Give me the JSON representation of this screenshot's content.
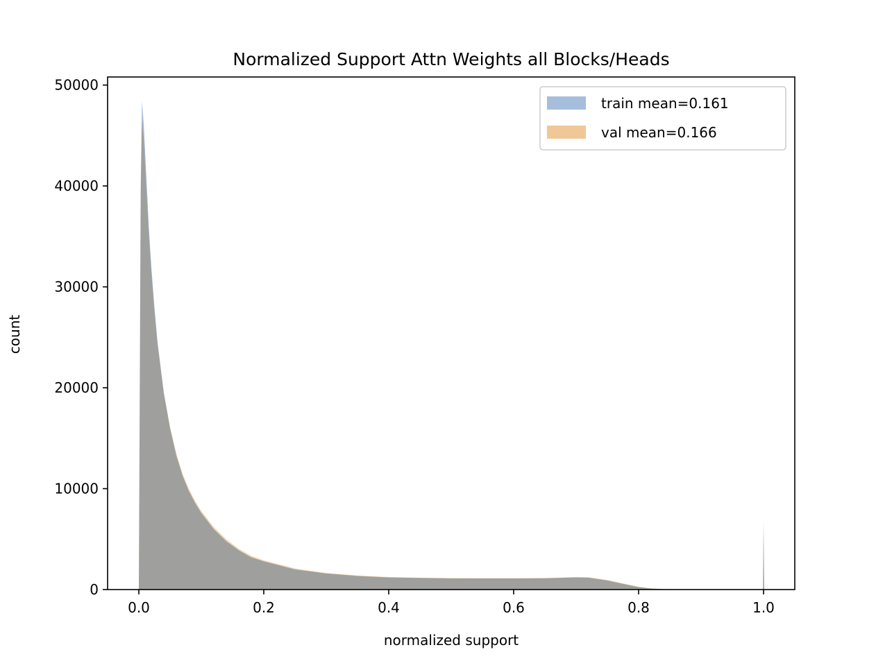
{
  "chart_data": {
    "type": "histogram",
    "title": "Normalized Support Attn Weights all Blocks/Heads",
    "xlabel": "normalized support",
    "ylabel": "count",
    "xlim": [
      -0.05,
      1.05
    ],
    "ylim": [
      0,
      50800
    ],
    "x_ticks": [
      0.0,
      0.2,
      0.4,
      0.6,
      0.8,
      1.0
    ],
    "x_tick_labels": [
      "0.0",
      "0.2",
      "0.4",
      "0.6",
      "0.8",
      "1.0"
    ],
    "y_ticks": [
      0,
      10000,
      20000,
      30000,
      40000,
      50000
    ],
    "y_tick_labels": [
      "0",
      "10000",
      "20000",
      "30000",
      "40000",
      "50000"
    ],
    "grid": false,
    "legend_position": "top-right",
    "series": [
      {
        "name": "train mean=0.161",
        "color": "#a6bddb",
        "points": [
          [
            0.0,
            0
          ],
          [
            0.0015,
            20000
          ],
          [
            0.003,
            40000
          ],
          [
            0.005,
            48400
          ],
          [
            0.008,
            46000
          ],
          [
            0.012,
            41000
          ],
          [
            0.016,
            36000
          ],
          [
            0.02,
            32000
          ],
          [
            0.025,
            28000
          ],
          [
            0.03,
            24500
          ],
          [
            0.04,
            19500
          ],
          [
            0.05,
            16000
          ],
          [
            0.06,
            13300
          ],
          [
            0.07,
            11300
          ],
          [
            0.08,
            9800
          ],
          [
            0.09,
            8600
          ],
          [
            0.1,
            7600
          ],
          [
            0.12,
            6000
          ],
          [
            0.14,
            4800
          ],
          [
            0.16,
            3900
          ],
          [
            0.18,
            3200
          ],
          [
            0.2,
            2800
          ],
          [
            0.25,
            2000
          ],
          [
            0.3,
            1600
          ],
          [
            0.35,
            1350
          ],
          [
            0.4,
            1200
          ],
          [
            0.45,
            1150
          ],
          [
            0.5,
            1100
          ],
          [
            0.55,
            1100
          ],
          [
            0.6,
            1100
          ],
          [
            0.65,
            1120
          ],
          [
            0.7,
            1200
          ],
          [
            0.72,
            1180
          ],
          [
            0.75,
            900
          ],
          [
            0.78,
            500
          ],
          [
            0.8,
            250
          ],
          [
            0.82,
            100
          ],
          [
            0.85,
            20
          ],
          [
            0.9,
            0
          ],
          [
            0.999,
            0
          ],
          [
            1.0,
            6700
          ],
          [
            1.001,
            0
          ],
          [
            1.0,
            0
          ]
        ]
      },
      {
        "name": "val mean=0.166",
        "color": "#f0c898",
        "points": [
          [
            0.0,
            0
          ],
          [
            0.0015,
            20000
          ],
          [
            0.003,
            39000
          ],
          [
            0.005,
            46500
          ],
          [
            0.008,
            44500
          ],
          [
            0.012,
            39800
          ],
          [
            0.016,
            35200
          ],
          [
            0.02,
            31500
          ],
          [
            0.025,
            27600
          ],
          [
            0.03,
            24300
          ],
          [
            0.04,
            19500
          ],
          [
            0.05,
            16100
          ],
          [
            0.06,
            13500
          ],
          [
            0.07,
            11500
          ],
          [
            0.08,
            10000
          ],
          [
            0.09,
            8800
          ],
          [
            0.1,
            7800
          ],
          [
            0.12,
            6200
          ],
          [
            0.14,
            5000
          ],
          [
            0.16,
            4050
          ],
          [
            0.18,
            3350
          ],
          [
            0.2,
            2900
          ],
          [
            0.25,
            2100
          ],
          [
            0.3,
            1650
          ],
          [
            0.35,
            1400
          ],
          [
            0.4,
            1250
          ],
          [
            0.45,
            1180
          ],
          [
            0.5,
            1150
          ],
          [
            0.55,
            1130
          ],
          [
            0.6,
            1130
          ],
          [
            0.65,
            1150
          ],
          [
            0.7,
            1250
          ],
          [
            0.72,
            1230
          ],
          [
            0.75,
            950
          ],
          [
            0.78,
            550
          ],
          [
            0.8,
            280
          ],
          [
            0.82,
            120
          ],
          [
            0.85,
            25
          ],
          [
            0.9,
            0
          ],
          [
            0.999,
            0
          ],
          [
            1.0,
            6700
          ],
          [
            1.001,
            0
          ],
          [
            1.0,
            0
          ]
        ]
      }
    ],
    "overlap_color": "#b8a284"
  }
}
